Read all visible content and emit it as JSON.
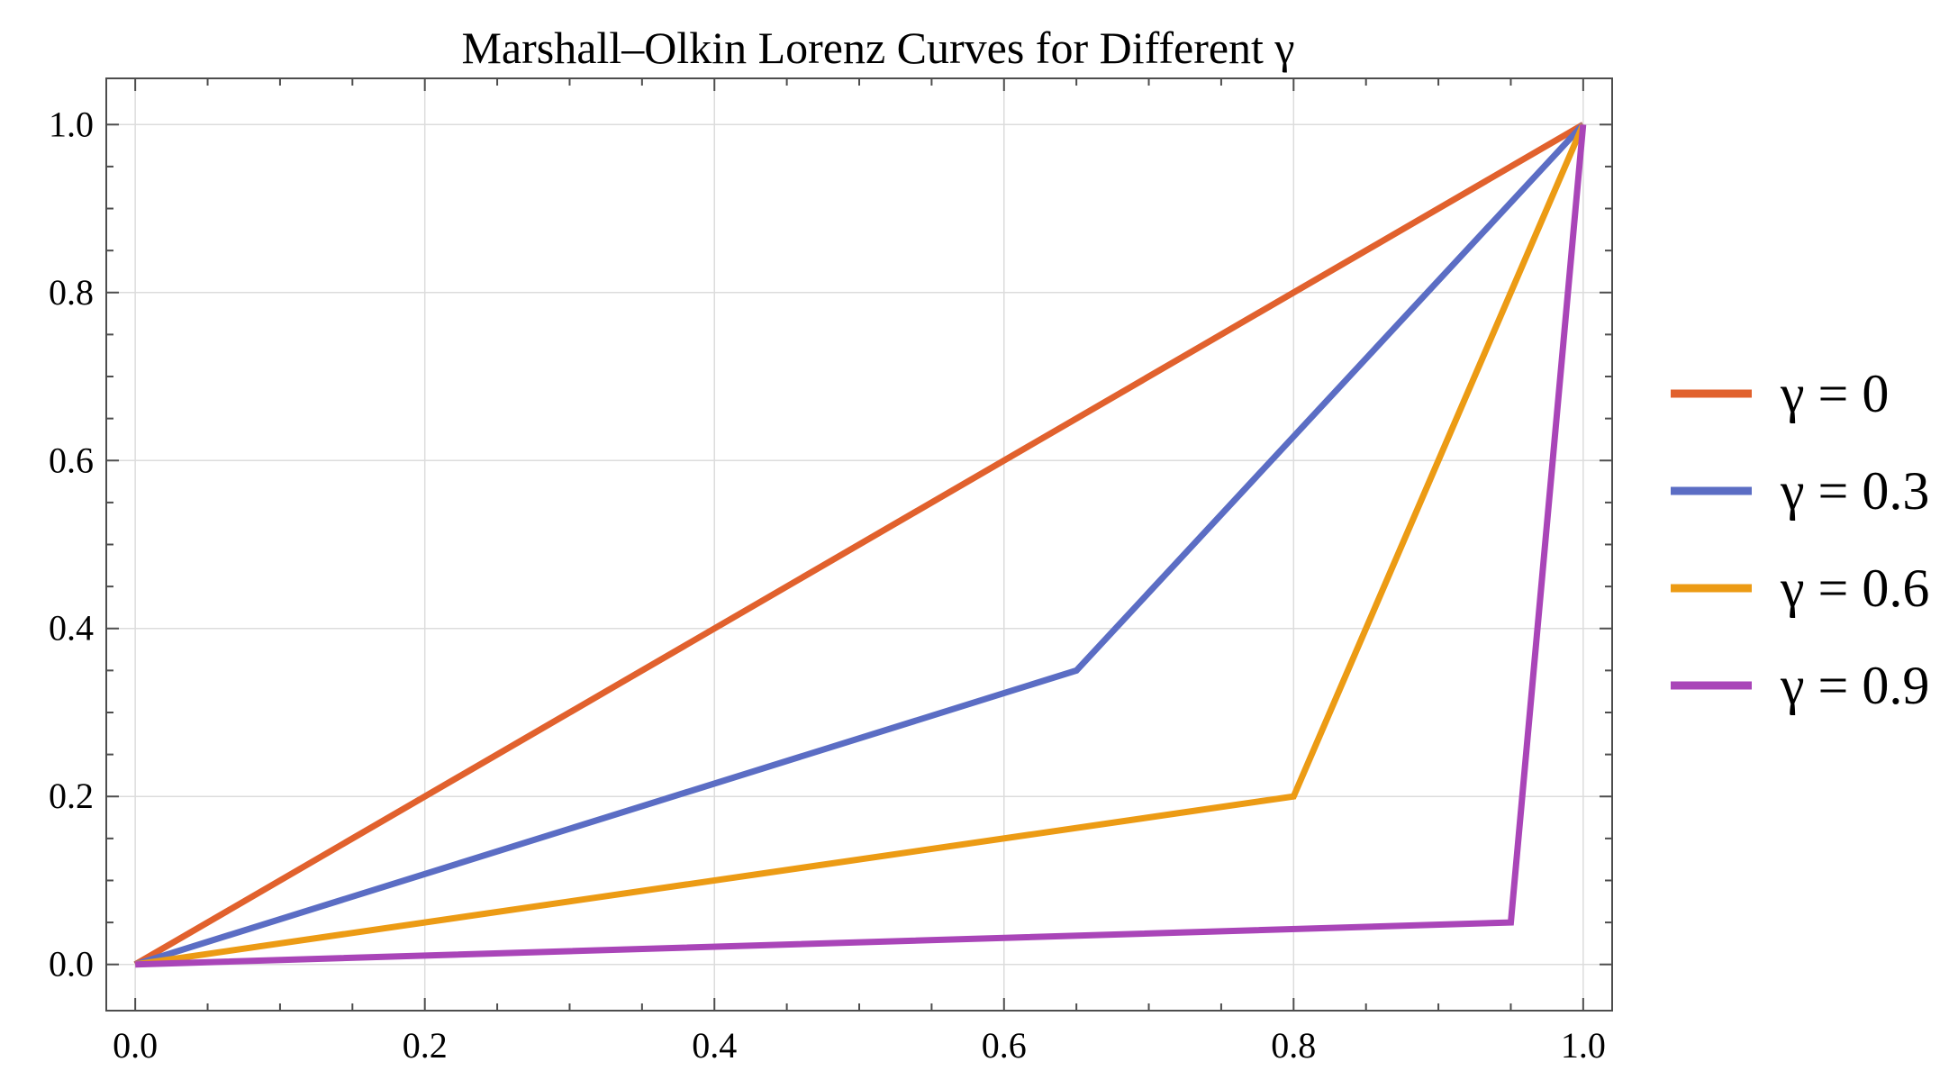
{
  "chart_data": {
    "type": "line",
    "title": "Marshall–Olkin Lorenz Curves for Different γ",
    "xlabel": "",
    "ylabel": "",
    "xlim": [
      -0.02,
      1.02
    ],
    "ylim": [
      -0.055,
      1.055
    ],
    "grid": true,
    "x_ticks": [
      0.0,
      0.2,
      0.4,
      0.6,
      0.8,
      1.0
    ],
    "x_tick_labels": [
      "0.0",
      "0.2",
      "0.4",
      "0.6",
      "0.8",
      "1.0"
    ],
    "y_ticks": [
      0.0,
      0.2,
      0.4,
      0.6,
      0.8,
      1.0
    ],
    "y_tick_labels": [
      "0.0",
      "0.2",
      "0.4",
      "0.6",
      "0.8",
      "1.0"
    ],
    "legend_position": "right",
    "series": [
      {
        "name": "γ = 0",
        "color": "#e1612d",
        "x": [
          0,
          1
        ],
        "y": [
          0,
          1
        ]
      },
      {
        "name": "γ = 0.3",
        "color": "#5b6dc4",
        "x": [
          0,
          0.65,
          1
        ],
        "y": [
          0,
          0.35,
          1
        ]
      },
      {
        "name": "γ = 0.6",
        "color": "#ec9b14",
        "x": [
          0,
          0.8,
          1
        ],
        "y": [
          0,
          0.2,
          1
        ]
      },
      {
        "name": "γ = 0.9",
        "color": "#a945b8",
        "x": [
          0,
          0.95,
          1
        ],
        "y": [
          0,
          0.05,
          1
        ]
      }
    ]
  }
}
